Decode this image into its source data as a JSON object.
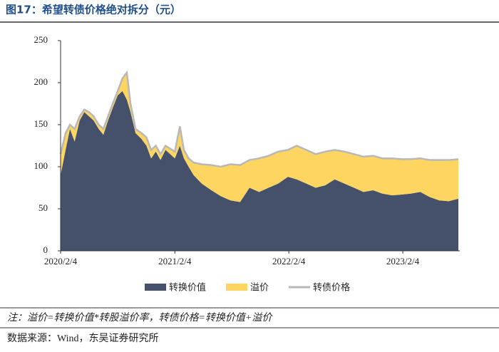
{
  "chart_data": {
    "type": "stacked-area",
    "title": "图17：希望转债价格绝对拆分（元）",
    "note": "注：溢价=转换价值*转股溢价率，转债价格=转换价值+溢价",
    "source": "数据来源：Wind，东吴证券研究所",
    "x": [
      "2020/2/4",
      "2020/2/20",
      "2020/3/5",
      "2020/3/20",
      "2020/4/5",
      "2020/4/20",
      "2020/5/5",
      "2020/5/20",
      "2020/6/5",
      "2020/6/20",
      "2020/7/5",
      "2020/7/20",
      "2020/8/5",
      "2020/8/20",
      "2020/9/3",
      "2020/9/15",
      "2020/10/1",
      "2020/10/20",
      "2020/11/5",
      "2020/11/20",
      "2020/12/5",
      "2020/12/20",
      "2021/1/5",
      "2021/2/4",
      "2021/2/20",
      "2021/3/5",
      "2021/3/20",
      "2021/4/5",
      "2021/5/1",
      "2021/6/1",
      "2021/7/1",
      "2021/8/1",
      "2021/9/1",
      "2021/10/1",
      "2021/11/1",
      "2021/12/1",
      "2022/1/1",
      "2022/2/1",
      "2022/3/1",
      "2022/4/1",
      "2022/5/1",
      "2022/6/1",
      "2022/7/1",
      "2022/8/1",
      "2022/9/1",
      "2022/10/1",
      "2022/11/1",
      "2022/12/1",
      "2023/1/1",
      "2023/2/1",
      "2023/3/1",
      "2023/4/1",
      "2023/5/1",
      "2023/6/1",
      "2023/7/1",
      "2023/8/1"
    ],
    "series": [
      {
        "name": "转换价值",
        "color": "#45506b",
        "values": [
          90,
          120,
          145,
          130,
          155,
          165,
          160,
          155,
          145,
          138,
          155,
          170,
          185,
          190,
          180,
          165,
          140,
          133,
          125,
          110,
          118,
          108,
          120,
          110,
          125,
          110,
          100,
          90,
          80,
          72,
          65,
          60,
          58,
          75,
          70,
          75,
          80,
          88,
          85,
          80,
          75,
          78,
          85,
          80,
          75,
          70,
          72,
          68,
          66,
          67,
          68,
          70,
          64,
          60,
          59,
          62
        ]
      },
      {
        "name": "溢价",
        "color": "#fdd560",
        "values": [
          25,
          20,
          5,
          15,
          5,
          3,
          5,
          5,
          5,
          7,
          5,
          5,
          5,
          15,
          32,
          10,
          5,
          7,
          10,
          10,
          7,
          7,
          5,
          8,
          23,
          10,
          10,
          15,
          23,
          30,
          35,
          43,
          44,
          33,
          40,
          38,
          38,
          32,
          40,
          40,
          40,
          40,
          35,
          38,
          40,
          42,
          41,
          42,
          44,
          42,
          41,
          40,
          44,
          48,
          49,
          47
        ]
      },
      {
        "name": "转债价格",
        "color": "#b8b8b8",
        "kind": "line",
        "values": [
          115,
          140,
          150,
          145,
          160,
          168,
          165,
          160,
          150,
          145,
          160,
          175,
          190,
          205,
          212,
          175,
          145,
          140,
          135,
          120,
          125,
          115,
          125,
          118,
          148,
          120,
          110,
          105,
          103,
          102,
          100,
          103,
          102,
          108,
          110,
          113,
          118,
          120,
          125,
          120,
          115,
          118,
          120,
          118,
          115,
          112,
          113,
          110,
          110,
          109,
          109,
          110,
          108,
          108,
          108,
          109
        ]
      }
    ],
    "xlim": [
      "2020/2/4",
      "2023/8/1"
    ],
    "xticks": [
      "2020/2/4",
      "2021/2/4",
      "2022/2/4",
      "2023/2/4"
    ],
    "ylim": [
      0,
      250
    ],
    "yticks": [
      0,
      50,
      100,
      150,
      200,
      250
    ],
    "grid": false
  }
}
